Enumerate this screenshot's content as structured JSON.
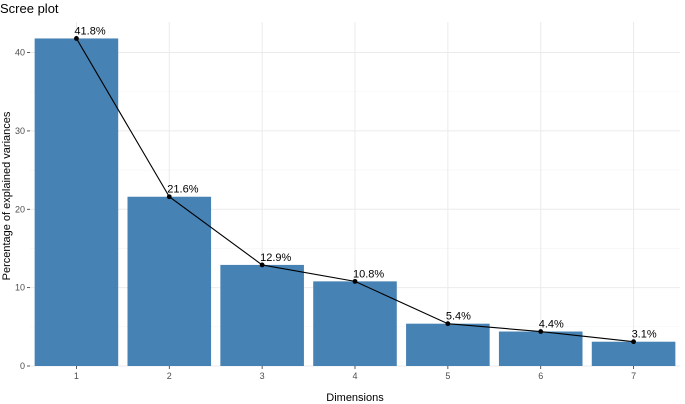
{
  "chart_data": {
    "type": "bar",
    "title": "Scree plot",
    "xlabel": "Dimensions",
    "ylabel": "Percentage of explained variances",
    "categories": [
      "1",
      "2",
      "3",
      "4",
      "5",
      "6",
      "7"
    ],
    "values": [
      41.8,
      21.6,
      12.9,
      10.8,
      5.4,
      4.4,
      3.1
    ],
    "labels": [
      "41.8%",
      "21.6%",
      "12.9%",
      "10.8%",
      "5.4%",
      "4.4%",
      "3.1%"
    ],
    "ylim": [
      0,
      43.9
    ],
    "yticks": [
      0,
      10,
      20,
      30,
      40
    ],
    "grid": true,
    "line_overlay": true,
    "bar_color": "#4682B4",
    "line_color": "#000000"
  }
}
